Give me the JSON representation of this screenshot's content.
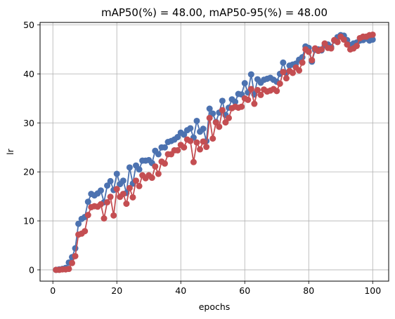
{
  "chart_data": {
    "type": "line",
    "title": "mAP50(%)  = 48.00, mAP50-95(%) = 48.00",
    "xlabel": "epochs",
    "ylabel": "lr",
    "xlim": [
      -4,
      105
    ],
    "ylim": [
      -2.3,
      50.5
    ],
    "xticks": [
      0,
      20,
      40,
      60,
      80,
      100
    ],
    "yticks": [
      0,
      10,
      20,
      30,
      40,
      50
    ],
    "grid": true,
    "colors": [
      "#4c72b0",
      "#c44e52"
    ],
    "series": [
      {
        "name": "",
        "color": "#4c72b0",
        "x": [
          1,
          2,
          3,
          4,
          5,
          6,
          7,
          8,
          9,
          10,
          11,
          12,
          13,
          14,
          15,
          16,
          17,
          18,
          19,
          20,
          21,
          22,
          23,
          24,
          25,
          26,
          27,
          28,
          29,
          30,
          31,
          32,
          33,
          34,
          35,
          36,
          37,
          38,
          39,
          40,
          41,
          42,
          43,
          44,
          45,
          46,
          47,
          48,
          49,
          50,
          51,
          52,
          53,
          54,
          55,
          56,
          57,
          58,
          59,
          60,
          61,
          62,
          63,
          64,
          65,
          66,
          67,
          68,
          69,
          70,
          71,
          72,
          73,
          74,
          75,
          76,
          77,
          78,
          79,
          80,
          81,
          82,
          83,
          84,
          85,
          86,
          87,
          88,
          89,
          90,
          91,
          92,
          93,
          94,
          95,
          96,
          97,
          98,
          99,
          100
        ],
        "y": [
          0,
          0.1,
          0.2,
          0.4,
          1.5,
          2.6,
          4.4,
          9.4,
          10.4,
          10.8,
          13.9,
          15.5,
          15.2,
          15.6,
          16.2,
          13.8,
          17.2,
          18.1,
          16.3,
          19.6,
          17.5,
          18.2,
          15.7,
          20.9,
          17.6,
          21.3,
          20.5,
          22.3,
          22.3,
          22.4,
          21.8,
          24.3,
          23.6,
          25.0,
          25.0,
          26.1,
          26.3,
          26.6,
          27.1,
          28.0,
          27.6,
          28.5,
          28.9,
          27.0,
          30.4,
          28.2,
          28.8,
          26.3,
          32.9,
          31.9,
          30.2,
          32.1,
          34.5,
          31.6,
          33.1,
          34.8,
          34.3,
          35.9,
          35.8,
          38.1,
          36.2,
          39.9,
          35.8,
          38.9,
          38.2,
          38.8,
          39.0,
          39.2,
          38.8,
          38.4,
          40.0,
          42.3,
          40.2,
          41.7,
          41.9,
          42.1,
          42.9,
          43.4,
          45.6,
          45.3,
          42.5,
          44.9,
          45.0,
          44.8,
          45.8,
          46.0,
          45.5,
          46.8,
          47.5,
          47.9,
          47.8,
          46.9,
          45.9,
          46.2,
          46.4,
          46.8,
          46.9,
          47.2,
          46.8,
          47.0
        ]
      },
      {
        "name": "",
        "color": "#c44e52",
        "x": [
          1,
          2,
          3,
          4,
          5,
          6,
          7,
          8,
          9,
          10,
          11,
          12,
          13,
          14,
          15,
          16,
          17,
          18,
          19,
          20,
          21,
          22,
          23,
          24,
          25,
          26,
          27,
          28,
          29,
          30,
          31,
          32,
          33,
          34,
          35,
          36,
          37,
          38,
          39,
          40,
          41,
          42,
          43,
          44,
          45,
          46,
          47,
          48,
          49,
          50,
          51,
          52,
          53,
          54,
          55,
          56,
          57,
          58,
          59,
          60,
          61,
          62,
          63,
          64,
          65,
          66,
          67,
          68,
          69,
          70,
          71,
          72,
          73,
          74,
          75,
          76,
          77,
          78,
          79,
          80,
          81,
          82,
          83,
          84,
          85,
          86,
          87,
          88,
          89,
          90,
          91,
          92,
          93,
          94,
          95,
          96,
          97,
          98,
          99,
          100
        ],
        "y": [
          0,
          0,
          0.1,
          0.1,
          0.2,
          1.4,
          2.8,
          7.2,
          7.4,
          7.9,
          11.2,
          12.8,
          13.0,
          12.9,
          13.4,
          10.5,
          13.8,
          14.9,
          11.1,
          16.5,
          14.9,
          15.5,
          13.5,
          16.7,
          14.8,
          18.2,
          17.1,
          19.3,
          18.7,
          19.3,
          18.8,
          21.1,
          19.6,
          22.1,
          21.7,
          23.6,
          23.6,
          24.4,
          24.4,
          25.5,
          25.0,
          26.6,
          26.3,
          22.0,
          26.0,
          24.6,
          26.2,
          25.1,
          31.0,
          26.8,
          30.1,
          29.2,
          32.6,
          30.1,
          31.0,
          33.0,
          33.3,
          33.1,
          33.3,
          35.0,
          34.7,
          36.9,
          33.9,
          36.7,
          35.7,
          36.8,
          36.4,
          36.6,
          36.9,
          36.5,
          38.0,
          40.4,
          39.1,
          40.6,
          40.2,
          41.3,
          40.7,
          42.3,
          45.0,
          44.5,
          42.8,
          45.2,
          44.7,
          45.0,
          46.2,
          45.3,
          45.2,
          46.9,
          46.5,
          47.6,
          47.0,
          46.0,
          45.0,
          45.2,
          45.7,
          47.3,
          47.6,
          47.6,
          47.9,
          48.0
        ]
      }
    ]
  }
}
